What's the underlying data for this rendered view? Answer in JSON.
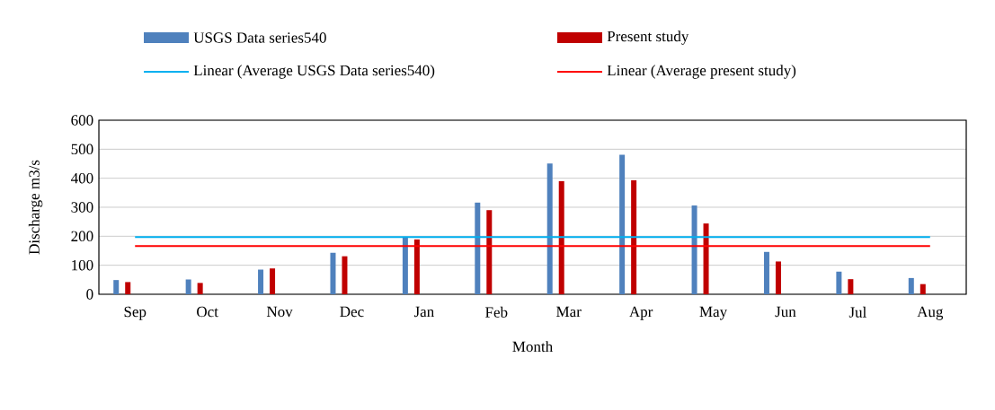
{
  "chart_data": {
    "type": "bar",
    "xlabel": "Month",
    "ylabel": "Discharge m3/s",
    "categories": [
      "Sep",
      "Oct",
      "Nov",
      "Dec",
      "Jan",
      "Feb",
      "Mar",
      "Apr",
      "May",
      "Jun",
      "Jul",
      "Aug"
    ],
    "ylim": [
      0,
      600
    ],
    "yticks": [
      0,
      100,
      200,
      300,
      400,
      500,
      600
    ],
    "grid": "y",
    "legend": "top",
    "series": [
      {
        "name": "USGS Data series540",
        "color": "#4f81bd",
        "values": [
          49,
          51,
          85,
          143,
          196,
          316,
          451,
          481,
          306,
          146,
          78,
          56
        ]
      },
      {
        "name": "Present study",
        "color": "#c00000",
        "values": [
          42,
          39,
          89,
          131,
          189,
          290,
          390,
          393,
          244,
          113,
          52,
          35
        ]
      },
      {
        "name": "Linear (Average USGS Data series540)",
        "type": "line",
        "color": "#00b0f0",
        "values": [
          197,
          197,
          197,
          197,
          197,
          197,
          197,
          197,
          197,
          197,
          197,
          197
        ]
      },
      {
        "name": "Linear (Average present study)",
        "type": "line",
        "color": "#ff0000",
        "values": [
          166,
          166,
          166,
          166,
          166,
          166,
          166,
          166,
          166,
          166,
          166,
          166
        ]
      }
    ]
  }
}
